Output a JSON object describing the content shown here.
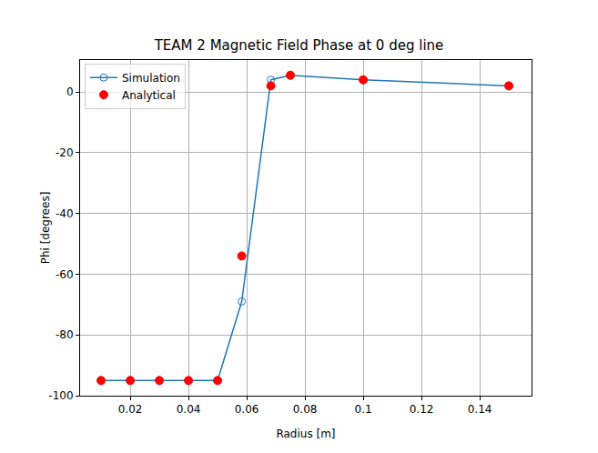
{
  "chart_data": {
    "type": "line",
    "title": "TEAM 2 Magnetic Field Phase at 0 deg line",
    "x_label": "Radius [m]",
    "y_label": "Phi [degrees]",
    "x": [
      0.01,
      0.02,
      0.03,
      0.04,
      0.05,
      0.0583,
      0.0683,
      0.075,
      0.1,
      0.15
    ],
    "series": [
      {
        "name": "Simulation",
        "type": "line",
        "color": "#1f77b4",
        "marker": "open circle",
        "line_style": "solid",
        "values": [
          -95,
          -95,
          -95,
          -95,
          -95,
          -69,
          4,
          5.5,
          4,
          2
        ]
      },
      {
        "name": "Analytical",
        "type": "scatter",
        "color": "#ff0000",
        "marker": "circle",
        "values": [
          -95,
          -95,
          -95,
          -95,
          -95,
          -54,
          2,
          5.5,
          4,
          2
        ]
      }
    ],
    "xlim": [
      0.0028,
      0.1578
    ],
    "ylim": [
      -100,
      10.5
    ],
    "xticks": [
      0.02,
      0.04,
      0.06,
      0.08,
      0.1,
      0.12,
      0.14
    ],
    "yticks": [
      -100,
      -80,
      -60,
      -40,
      -20,
      0
    ],
    "grid": true,
    "legend": "upper left"
  }
}
